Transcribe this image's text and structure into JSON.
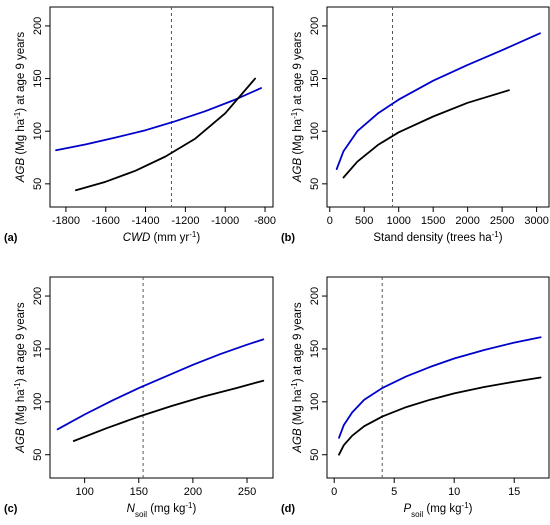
{
  "chart_data": [
    {
      "type": "line",
      "panel_label": "(a)",
      "xlabel": {
        "italic": "CWD",
        "rest": " (mm yr",
        "sup": "-1",
        "tail": ")"
      },
      "ylabel": {
        "italic": "AGB",
        "rest": " (Mg ha",
        "sup": "-1",
        "tail": ") at age 9 years"
      },
      "xlim": [
        -1880,
        -760
      ],
      "ylim": [
        28,
        218
      ],
      "xticks": [
        -1800,
        -1600,
        -1400,
        -1200,
        -1000,
        -800
      ],
      "yticks": [
        50,
        100,
        150,
        200
      ],
      "vline_x": -1270,
      "series": [
        {
          "color": "#0000cc",
          "x": [
            -1850,
            -1700,
            -1550,
            -1400,
            -1250,
            -1100,
            -950,
            -820
          ],
          "y": [
            82,
            87.5,
            94,
            101,
            109.5,
            119,
            130,
            141
          ]
        },
        {
          "color": "#000000",
          "x": [
            -1750,
            -1600,
            -1450,
            -1300,
            -1150,
            -1000,
            -850
          ],
          "y": [
            44,
            52,
            62.5,
            76,
            93,
            117,
            150
          ]
        }
      ]
    },
    {
      "type": "line",
      "panel_label": "(b)",
      "xlabel": {
        "italic": "",
        "rest": "Stand density (trees ha",
        "sup": "-1",
        "tail": ")"
      },
      "ylabel": {
        "italic": "AGB",
        "rest": " (Mg ha",
        "sup": "-1",
        "tail": ") at age 9 years"
      },
      "xlim": [
        -40,
        3180
      ],
      "ylim": [
        28,
        218
      ],
      "xticks": [
        0,
        500,
        1000,
        1500,
        2000,
        2500,
        3000
      ],
      "yticks": [
        50,
        100,
        150,
        200
      ],
      "vline_x": 910,
      "series": [
        {
          "color": "#0000cc",
          "x": [
            100,
            200,
            400,
            700,
            1000,
            1500,
            2000,
            2500,
            3050
          ],
          "y": [
            64,
            81,
            100,
            117,
            130,
            148,
            163,
            177,
            193
          ]
        },
        {
          "color": "#000000",
          "x": [
            200,
            400,
            700,
            1000,
            1500,
            2000,
            2600
          ],
          "y": [
            56,
            71,
            87,
            99,
            114,
            127,
            139
          ]
        }
      ]
    },
    {
      "type": "line",
      "panel_label": "(c)",
      "xlabel": {
        "italic": "N",
        "sub": "soil",
        "rest": " (mg kg",
        "sup": "-1",
        "tail": ")"
      },
      "ylabel": {
        "italic": "AGB",
        "rest": " (Mg ha",
        "sup": "-1",
        "tail": ") at age 9 years"
      },
      "xlim": [
        68,
        274
      ],
      "ylim": [
        28,
        218
      ],
      "xticks": [
        100,
        150,
        200,
        250
      ],
      "yticks": [
        50,
        100,
        150,
        200
      ],
      "vline_x": 154,
      "series": [
        {
          "color": "#0000cc",
          "x": [
            75,
            100,
            125,
            150,
            175,
            200,
            225,
            250,
            265
          ],
          "y": [
            74,
            88,
            101,
            113,
            124,
            135,
            145,
            154,
            159
          ]
        },
        {
          "color": "#000000",
          "x": [
            90,
            120,
            150,
            180,
            210,
            240,
            265
          ],
          "y": [
            63,
            75,
            86,
            96,
            105,
            113,
            120
          ]
        }
      ]
    },
    {
      "type": "line",
      "panel_label": "(d)",
      "xlabel": {
        "italic": "P",
        "sub": "soil",
        "rest": " (mg kg",
        "sup": "-1",
        "tail": ")"
      },
      "ylabel": {
        "italic": "AGB",
        "rest": " (Mg ha",
        "sup": "-1",
        "tail": ") at age 9 years"
      },
      "xlim": [
        -0.6,
        17.9
      ],
      "ylim": [
        28,
        218
      ],
      "xticks": [
        0,
        5,
        10,
        15
      ],
      "yticks": [
        50,
        100,
        150,
        200
      ],
      "vline_x": 4,
      "series": [
        {
          "color": "#0000cc",
          "x": [
            0.4,
            0.8,
            1.5,
            2.5,
            4,
            6,
            8,
            10,
            12.5,
            15,
            17.2
          ],
          "y": [
            66,
            78,
            90,
            102,
            113,
            124,
            133,
            141,
            149,
            156,
            161
          ]
        },
        {
          "color": "#000000",
          "x": [
            0.4,
            0.8,
            1.5,
            2.5,
            4,
            6,
            8,
            10,
            12.5,
            15,
            17.2
          ],
          "y": [
            50,
            59,
            68,
            77,
            86,
            95,
            102,
            108,
            114,
            119,
            123
          ]
        }
      ]
    }
  ]
}
